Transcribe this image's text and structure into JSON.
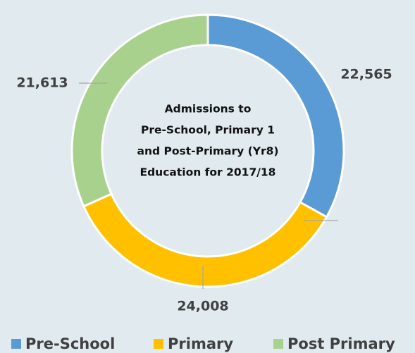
{
  "chart_data": {
    "type": "donut",
    "title": [
      "Admissions to",
      "Pre-School, Primary 1",
      "and Post-Primary (Yr8)",
      "Education for 2017/18"
    ],
    "categories": [
      "Pre-School",
      "Primary",
      "Post Primary"
    ],
    "values": [
      22565,
      24008,
      21613
    ],
    "value_labels": [
      "22,565",
      "24,008",
      "21,613"
    ],
    "colors": [
      "#5b9bd5",
      "#ffc000",
      "#a9d18e"
    ],
    "legend": "bottom"
  }
}
